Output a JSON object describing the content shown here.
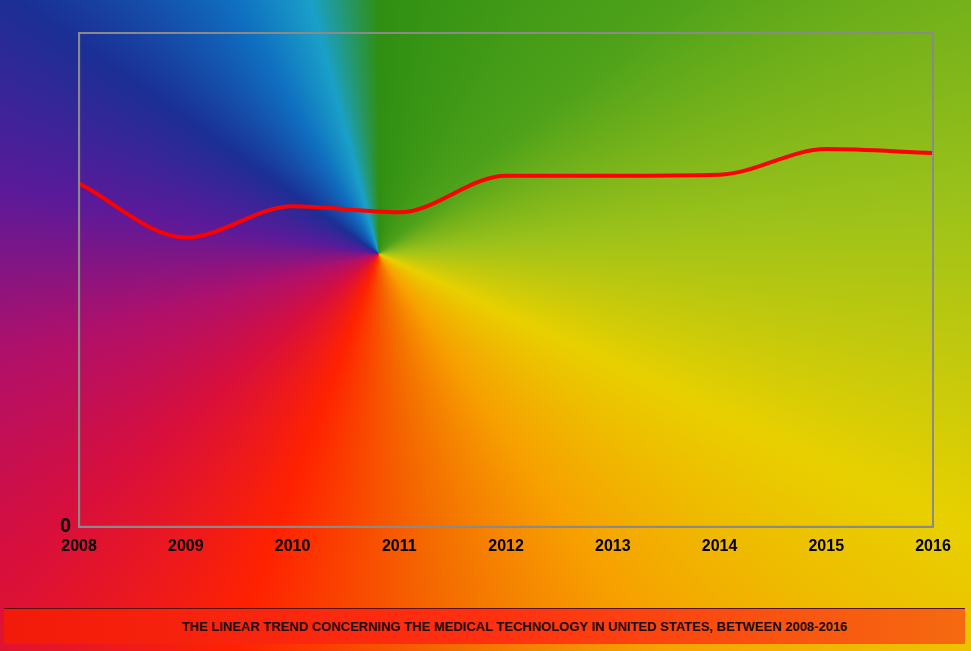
{
  "chart_data": {
    "type": "line",
    "title": "THE LINEAR TREND CONCERNING THE MEDICAL TECHNOLOGY IN UNITED STATES, BETWEEN 2008-2016",
    "categories": [
      "2008",
      "2009",
      "2010",
      "2011",
      "2012",
      "2013",
      "2014",
      "2015",
      "2016"
    ],
    "values": [
      69.5,
      58.6,
      64.9,
      63.7,
      71.1,
      71.1,
      71.3,
      76.5,
      75.7
    ],
    "color": "#ff0000",
    "ylim": [
      0,
      100
    ],
    "yticks": [
      0
    ],
    "grid": false,
    "marker": "none"
  }
}
